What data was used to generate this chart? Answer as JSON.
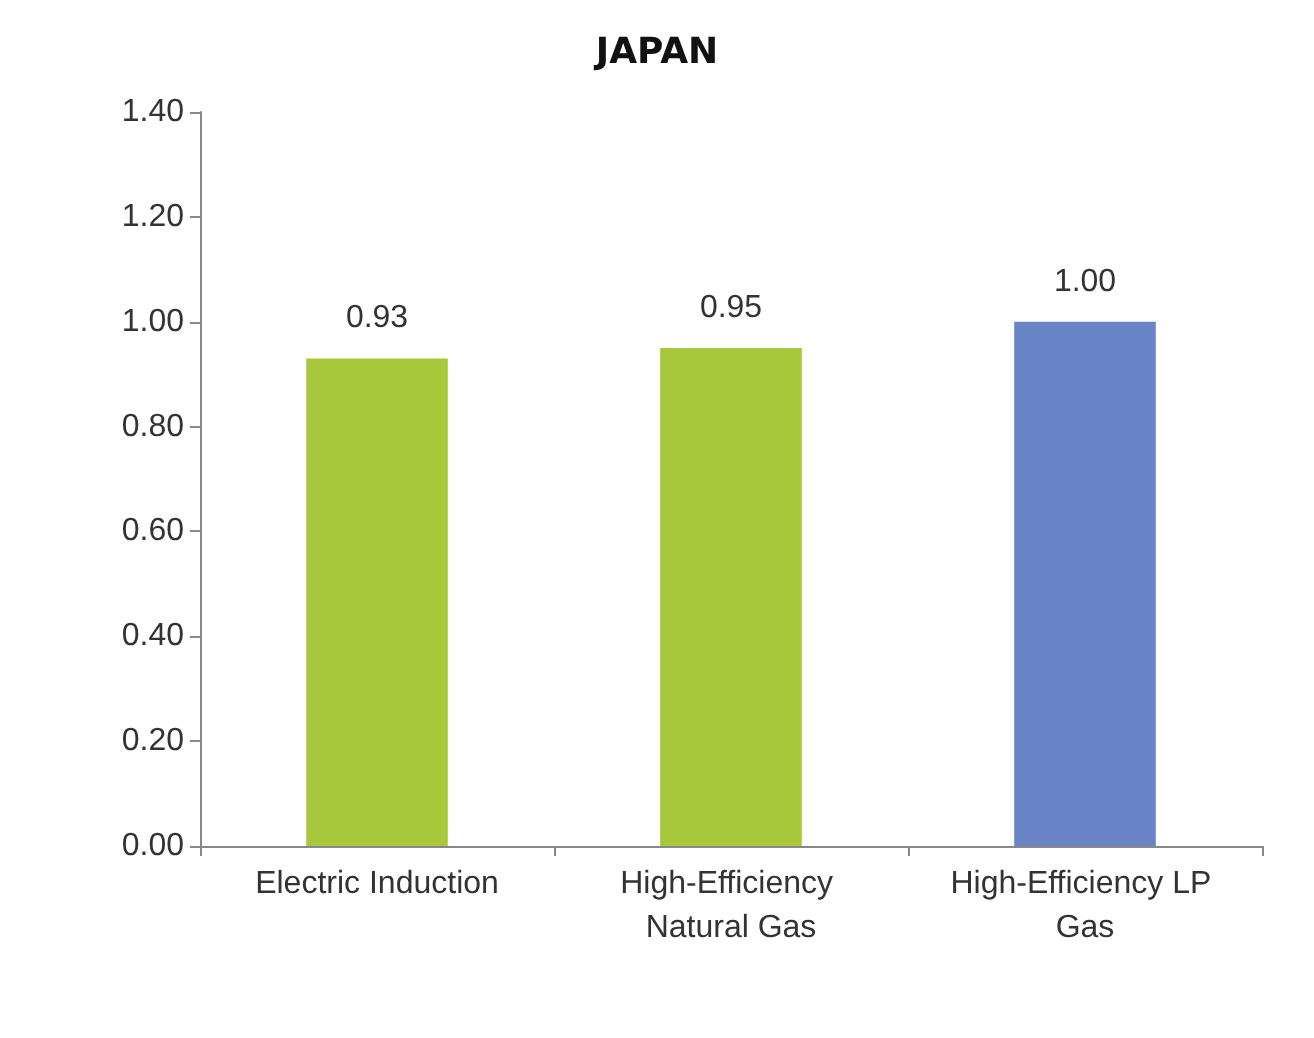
{
  "chart_data": {
    "type": "bar",
    "title": "JAPAN",
    "categories": [
      "Electric Induction",
      "High-Efficiency Natural Gas",
      "High-Efficiency LP Gas"
    ],
    "values": [
      0.93,
      0.95,
      1.0
    ],
    "value_labels": [
      "0.93",
      "0.95",
      "1.00"
    ],
    "colors": [
      "#a6c83a",
      "#a6c83a",
      "#6a84c8"
    ],
    "ylim": [
      0,
      1.4
    ],
    "yticks": [
      {
        "value": 0,
        "label": "0.00"
      },
      {
        "value": 0.2,
        "label": "0.20"
      },
      {
        "value": 0.4,
        "label": "0.40"
      },
      {
        "value": 0.6,
        "label": "0.60"
      },
      {
        "value": 0.8,
        "label": "0.80"
      },
      {
        "value": 1.0,
        "label": "1.00"
      },
      {
        "value": 1.2,
        "label": "1.20"
      },
      {
        "value": 1.4,
        "label": "1.40"
      }
    ],
    "grid": false
  }
}
